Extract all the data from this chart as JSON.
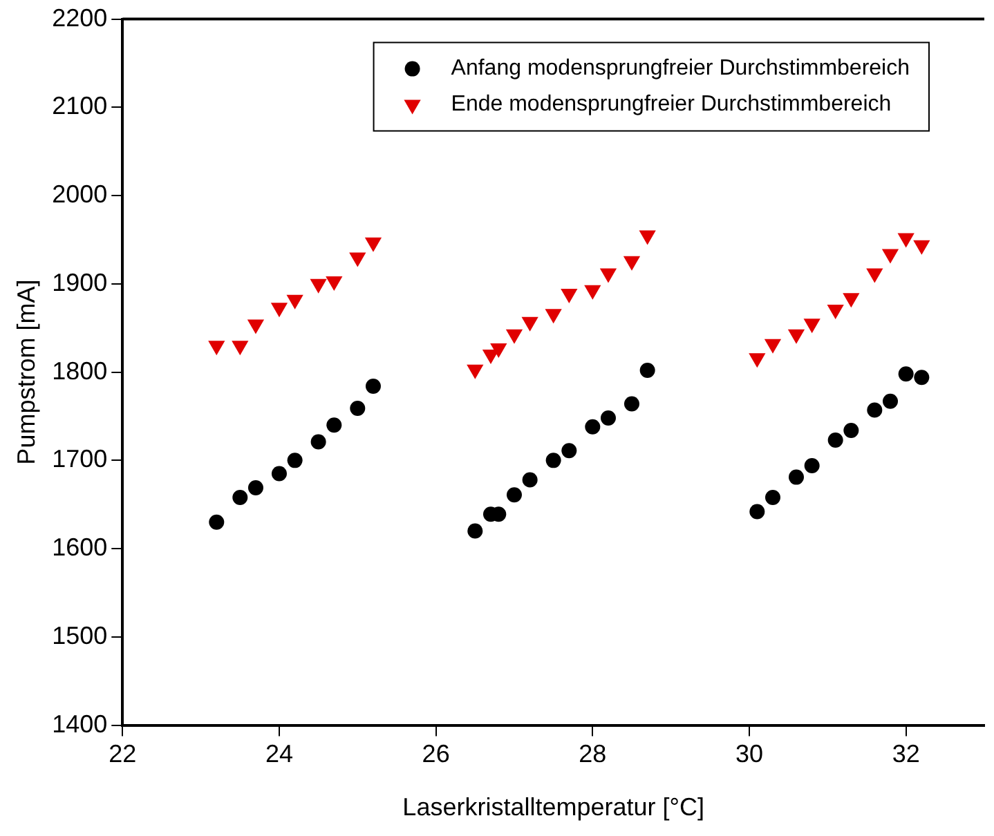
{
  "chart_data": {
    "type": "scatter",
    "xlabel": "Laserkristalltemperatur [°C]",
    "ylabel": "Pumpstrom [mA]",
    "xlim": [
      22,
      33
    ],
    "xticks": [
      22,
      24,
      26,
      28,
      30,
      32
    ],
    "ylim": [
      1400,
      2200
    ],
    "yticks": [
      1400,
      1500,
      1600,
      1700,
      1800,
      1900,
      2000,
      2100,
      2200
    ],
    "grid": false,
    "legend": "top right",
    "series": [
      {
        "name": "Anfang modensprungfreier Durchstimmbereich",
        "color": "#000000",
        "marker": "circle",
        "x": [
          23.2,
          23.5,
          23.7,
          24.0,
          24.2,
          24.5,
          24.7,
          25.0,
          25.2,
          26.5,
          26.7,
          26.8,
          27.0,
          27.2,
          27.5,
          27.7,
          28.0,
          28.2,
          28.5,
          28.7,
          30.1,
          30.3,
          30.6,
          30.8,
          31.1,
          31.3,
          31.6,
          31.8,
          32.0,
          32.2
        ],
        "values": [
          1630,
          1658,
          1669,
          1685,
          1700,
          1721,
          1740,
          1759,
          1784,
          1620,
          1639,
          1639,
          1661,
          1678,
          1700,
          1711,
          1738,
          1748,
          1764,
          1802,
          1642,
          1658,
          1681,
          1694,
          1723,
          1734,
          1757,
          1767,
          1798,
          1794
        ]
      },
      {
        "name": "Ende modensprungfreier Durchstimmbereich",
        "color": "#e00000",
        "marker": "triangle",
        "x": [
          23.2,
          23.5,
          23.7,
          24.0,
          24.2,
          24.5,
          24.7,
          25.0,
          25.2,
          26.5,
          26.7,
          26.8,
          27.0,
          27.2,
          27.5,
          27.7,
          28.0,
          28.2,
          28.5,
          28.7,
          30.1,
          30.3,
          30.6,
          30.8,
          31.1,
          31.3,
          31.6,
          31.8,
          32.0,
          32.2
        ],
        "values": [
          1830,
          1830,
          1854,
          1873,
          1882,
          1900,
          1903,
          1930,
          1947,
          1803,
          1820,
          1827,
          1843,
          1857,
          1866,
          1889,
          1893,
          1912,
          1926,
          1955,
          1816,
          1832,
          1843,
          1855,
          1871,
          1884,
          1912,
          1934,
          1952,
          1944
        ]
      }
    ]
  }
}
